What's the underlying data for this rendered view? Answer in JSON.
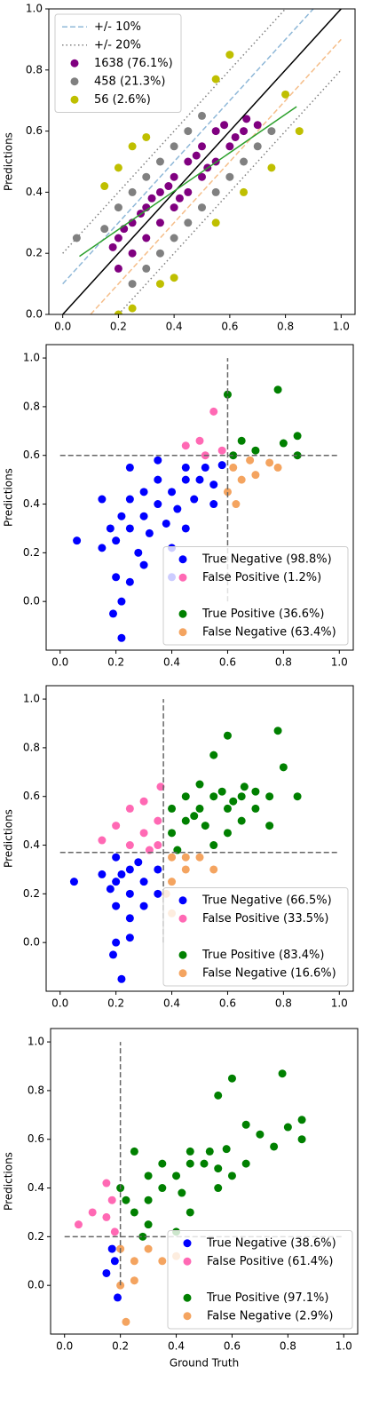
{
  "chart_data": [
    {
      "type": "scatter",
      "ylabel": "Predictions",
      "xlim": [
        -0.05,
        1.05
      ],
      "ylim": [
        0,
        1
      ],
      "xticks": [
        {
          "value": 0,
          "label": "0.0"
        },
        0.2,
        0.4,
        0.6,
        0.8,
        {
          "value": 1,
          "label": "1.0"
        }
      ],
      "yticks": [
        {
          "value": 0,
          "label": "0.0"
        },
        0.2,
        0.4,
        0.6,
        0.8,
        {
          "value": 1,
          "label": "1.0"
        }
      ],
      "legend": "upper left",
      "grid": false,
      "ref_lines": [
        {
          "name": "+/- 10%",
          "style": "dashed",
          "segments": [
            {
              "color": "#8fb8d8",
              "x": [
                0,
                0.9
              ],
              "y": [
                0.1,
                1
              ]
            },
            {
              "color": "#f5be8a",
              "x": [
                0.1,
                1
              ],
              "y": [
                0,
                0.9
              ]
            }
          ]
        },
        {
          "name": "+/- 20%",
          "style": "dotted",
          "segments": [
            {
              "color": "#808080",
              "x": [
                0,
                0.8
              ],
              "y": [
                0.2,
                1
              ]
            },
            {
              "color": "#808080",
              "x": [
                0.2,
                1
              ],
              "y": [
                0,
                0.8
              ]
            }
          ]
        }
      ],
      "lines": [
        {
          "color": "#000000",
          "x": [
            0,
            1
          ],
          "y": [
            0,
            1
          ]
        },
        {
          "color": "#2ca02c",
          "x": [
            0.06,
            0.84
          ],
          "y": [
            0.19,
            0.68
          ]
        }
      ],
      "series": [
        {
          "name": "1638 (76.1%)",
          "color": "#800080",
          "x": [
            0.2,
            0.25,
            0.3,
            0.3,
            0.35,
            0.4,
            0.4,
            0.45,
            0.45,
            0.5,
            0.5,
            0.55,
            0.55,
            0.6,
            0.65,
            0.7,
            0.35,
            0.25,
            0.2,
            0.28,
            0.38,
            0.48,
            0.58,
            0.62,
            0.42,
            0.32,
            0.22,
            0.18,
            0.52,
            0.66
          ],
          "y": [
            0.25,
            0.3,
            0.35,
            0.25,
            0.4,
            0.35,
            0.45,
            0.4,
            0.5,
            0.45,
            0.55,
            0.5,
            0.6,
            0.55,
            0.6,
            0.62,
            0.3,
            0.2,
            0.15,
            0.33,
            0.42,
            0.52,
            0.62,
            0.58,
            0.38,
            0.38,
            0.28,
            0.22,
            0.48,
            0.64
          ]
        },
        {
          "name": "458 (21.3%)",
          "color": "#808080",
          "x": [
            0.15,
            0.2,
            0.25,
            0.3,
            0.35,
            0.4,
            0.45,
            0.5,
            0.3,
            0.35,
            0.4,
            0.45,
            0.5,
            0.55,
            0.6,
            0.65,
            0.7,
            0.05,
            0.25,
            0.75
          ],
          "y": [
            0.28,
            0.35,
            0.4,
            0.45,
            0.5,
            0.55,
            0.6,
            0.65,
            0.15,
            0.2,
            0.25,
            0.3,
            0.35,
            0.4,
            0.45,
            0.5,
            0.55,
            0.25,
            0.1,
            0.6
          ]
        },
        {
          "name": "56 (2.6%)",
          "color": "#bfbf00",
          "x": [
            0.15,
            0.2,
            0.25,
            0.3,
            0.55,
            0.6,
            0.35,
            0.4,
            0.25,
            0.55,
            0.65,
            0.75,
            0.85,
            0.8,
            0.2
          ],
          "y": [
            0.42,
            0.48,
            0.55,
            0.58,
            0.77,
            0.85,
            0.1,
            0.12,
            0.02,
            0.3,
            0.4,
            0.48,
            0.6,
            0.72,
            0.0
          ]
        }
      ]
    },
    {
      "type": "scatter",
      "ylabel": "Predictions",
      "xlim": [
        -0.05,
        1.05
      ],
      "ylim": [
        -0.2,
        1.055
      ],
      "xticks": [
        {
          "value": 0,
          "label": "0.0"
        },
        0.2,
        0.4,
        0.6,
        0.8,
        {
          "value": 1,
          "label": "1.0"
        }
      ],
      "yticks": [
        {
          "value": 0,
          "label": "0.0"
        },
        0.2,
        0.4,
        0.6,
        0.8,
        {
          "value": 1,
          "label": "1.0"
        }
      ],
      "legend": "lower right",
      "grid": false,
      "threshold_lines": [
        {
          "x": [
            0.6,
            0.6
          ],
          "y": [
            0,
            1
          ]
        },
        {
          "x": [
            0,
            1
          ],
          "y": [
            0.6,
            0.6
          ]
        }
      ],
      "series": [
        {
          "name": "True Negative (98.8%)",
          "color": "#0000ff",
          "x": [
            0.06,
            0.15,
            0.18,
            0.2,
            0.22,
            0.25,
            0.25,
            0.28,
            0.3,
            0.3,
            0.32,
            0.35,
            0.35,
            0.38,
            0.4,
            0.42,
            0.45,
            0.45,
            0.48,
            0.5,
            0.52,
            0.55,
            0.58,
            0.2,
            0.22,
            0.19,
            0.22,
            0.25,
            0.3,
            0.4,
            0.45,
            0.55,
            0.15,
            0.25,
            0.35,
            0.4
          ],
          "y": [
            0.25,
            0.22,
            0.3,
            0.25,
            0.35,
            0.3,
            0.42,
            0.2,
            0.35,
            0.45,
            0.28,
            0.4,
            0.5,
            0.32,
            0.45,
            0.38,
            0.5,
            0.55,
            0.42,
            0.5,
            0.55,
            0.48,
            0.56,
            0.1,
            0.0,
            -0.05,
            -0.15,
            0.08,
            0.15,
            0.22,
            0.3,
            0.4,
            0.42,
            0.55,
            0.58,
            0.1
          ]
        },
        {
          "name": "False Positive (1.2%)",
          "color": "#ff69b4",
          "x": [
            0.45,
            0.5,
            0.55,
            0.58,
            0.52
          ],
          "y": [
            0.64,
            0.66,
            0.78,
            0.62,
            0.6
          ]
        },
        {
          "name": "True Positive (36.6%)",
          "color": "#008000",
          "x": [
            0.6,
            0.65,
            0.7,
            0.78,
            0.8,
            0.85,
            0.85,
            0.62
          ],
          "y": [
            0.85,
            0.66,
            0.62,
            0.87,
            0.65,
            0.68,
            0.6,
            0.6
          ]
        },
        {
          "name": "False Negative (63.4%)",
          "color": "#f4a460",
          "x": [
            0.6,
            0.62,
            0.65,
            0.68,
            0.7,
            0.75,
            0.63,
            0.78
          ],
          "y": [
            0.45,
            0.55,
            0.5,
            0.58,
            0.52,
            0.57,
            0.4,
            0.55
          ]
        }
      ]
    },
    {
      "type": "scatter",
      "ylabel": "Predictions",
      "xlim": [
        -0.05,
        1.05
      ],
      "ylim": [
        -0.2,
        1.055
      ],
      "xticks": [
        {
          "value": 0,
          "label": "0.0"
        },
        0.2,
        0.4,
        0.6,
        0.8,
        {
          "value": 1,
          "label": "1.0"
        }
      ],
      "yticks": [
        {
          "value": 0,
          "label": "0.0"
        },
        0.2,
        0.4,
        0.6,
        0.8,
        {
          "value": 1,
          "label": "1.0"
        }
      ],
      "legend": "lower right",
      "grid": false,
      "threshold_lines": [
        {
          "x": [
            0.37,
            0.37
          ],
          "y": [
            0,
            1
          ]
        },
        {
          "x": [
            0,
            1
          ],
          "y": [
            0.37,
            0.37
          ]
        }
      ],
      "series": [
        {
          "name": "True Negative (66.5%)",
          "color": "#0000ff",
          "x": [
            0.2,
            0.25,
            0.3,
            0.35,
            0.25,
            0.2,
            0.28,
            0.22,
            0.18,
            0.3,
            0.35,
            0.15,
            0.2,
            0.05,
            0.25,
            0.25,
            0.2,
            0.22,
            0.19
          ],
          "y": [
            0.25,
            0.3,
            0.25,
            0.3,
            0.2,
            0.15,
            0.33,
            0.28,
            0.22,
            0.15,
            0.2,
            0.28,
            0.35,
            0.25,
            0.1,
            0.02,
            0.0,
            -0.15,
            -0.05
          ]
        },
        {
          "name": "False Positive (33.5%)",
          "color": "#ff69b4",
          "x": [
            0.3,
            0.35,
            0.25,
            0.15,
            0.2,
            0.25,
            0.3,
            0.35,
            0.32,
            0.36
          ],
          "y": [
            0.45,
            0.5,
            0.4,
            0.42,
            0.48,
            0.55,
            0.58,
            0.4,
            0.38,
            0.64
          ]
        },
        {
          "name": "True Positive (83.4%)",
          "color": "#008000",
          "x": [
            0.4,
            0.45,
            0.5,
            0.55,
            0.6,
            0.65,
            0.7,
            0.4,
            0.45,
            0.5,
            0.42,
            0.48,
            0.58,
            0.62,
            0.52,
            0.66,
            0.55,
            0.6,
            0.85,
            0.8,
            0.78,
            0.65,
            0.7,
            0.75,
            0.6,
            0.55,
            0.75
          ],
          "y": [
            0.45,
            0.5,
            0.55,
            0.6,
            0.55,
            0.6,
            0.62,
            0.55,
            0.6,
            0.65,
            0.38,
            0.52,
            0.62,
            0.58,
            0.48,
            0.64,
            0.77,
            0.85,
            0.6,
            0.72,
            0.87,
            0.5,
            0.55,
            0.6,
            0.45,
            0.4,
            0.48
          ]
        },
        {
          "name": "False Negative (16.6%)",
          "color": "#f4a460",
          "x": [
            0.4,
            0.45,
            0.5,
            0.4,
            0.45,
            0.55,
            0.4,
            0.38
          ],
          "y": [
            0.35,
            0.3,
            0.35,
            0.25,
            0.35,
            0.3,
            0.12,
            0.2
          ]
        }
      ]
    },
    {
      "type": "scatter",
      "xlabel": "Ground Truth",
      "ylabel": "Predictions",
      "xlim": [
        -0.05,
        1.05
      ],
      "ylim": [
        -0.2,
        1.055
      ],
      "xticks": [
        {
          "value": 0,
          "label": "0.0"
        },
        0.2,
        0.4,
        0.6,
        0.8,
        {
          "value": 1,
          "label": "1.0"
        }
      ],
      "yticks": [
        {
          "value": 0,
          "label": "0.0"
        },
        0.2,
        0.4,
        0.6,
        0.8,
        {
          "value": 1,
          "label": "1.0"
        }
      ],
      "legend": "lower right",
      "grid": false,
      "threshold_lines": [
        {
          "x": [
            0.2,
            0.2
          ],
          "y": [
            0,
            1
          ]
        },
        {
          "x": [
            0,
            1
          ],
          "y": [
            0.2,
            0.2
          ]
        }
      ],
      "series": [
        {
          "name": "True Negative (38.6%)",
          "color": "#0000ff",
          "x": [
            0.18,
            0.19,
            0.15,
            0.17
          ],
          "y": [
            0.1,
            -0.05,
            0.05,
            0.15
          ]
        },
        {
          "name": "False Positive (61.4%)",
          "color": "#ff69b4",
          "x": [
            0.05,
            0.15,
            0.18,
            0.15,
            0.1,
            0.17
          ],
          "y": [
            0.25,
            0.28,
            0.22,
            0.42,
            0.3,
            0.35
          ]
        },
        {
          "name": "True Positive (97.1%)",
          "color": "#008000",
          "x": [
            0.22,
            0.25,
            0.3,
            0.3,
            0.35,
            0.35,
            0.4,
            0.42,
            0.45,
            0.45,
            0.5,
            0.52,
            0.55,
            0.58,
            0.6,
            0.65,
            0.7,
            0.78,
            0.8,
            0.85,
            0.85,
            0.6,
            0.65,
            0.75,
            0.25,
            0.3,
            0.4,
            0.45,
            0.55,
            0.28,
            0.55,
            0.2
          ],
          "y": [
            0.35,
            0.3,
            0.35,
            0.45,
            0.4,
            0.5,
            0.45,
            0.38,
            0.5,
            0.55,
            0.5,
            0.55,
            0.48,
            0.56,
            0.85,
            0.66,
            0.62,
            0.87,
            0.65,
            0.68,
            0.6,
            0.45,
            0.5,
            0.57,
            0.55,
            0.25,
            0.22,
            0.3,
            0.4,
            0.2,
            0.78,
            0.4
          ]
        },
        {
          "name": "False Negative (2.9%)",
          "color": "#f4a460",
          "x": [
            0.25,
            0.25,
            0.2,
            0.22,
            0.3,
            0.35,
            0.4,
            0.2
          ],
          "y": [
            0.1,
            0.02,
            0.0,
            -0.15,
            0.15,
            0.1,
            0.12,
            0.15
          ]
        }
      ]
    }
  ]
}
